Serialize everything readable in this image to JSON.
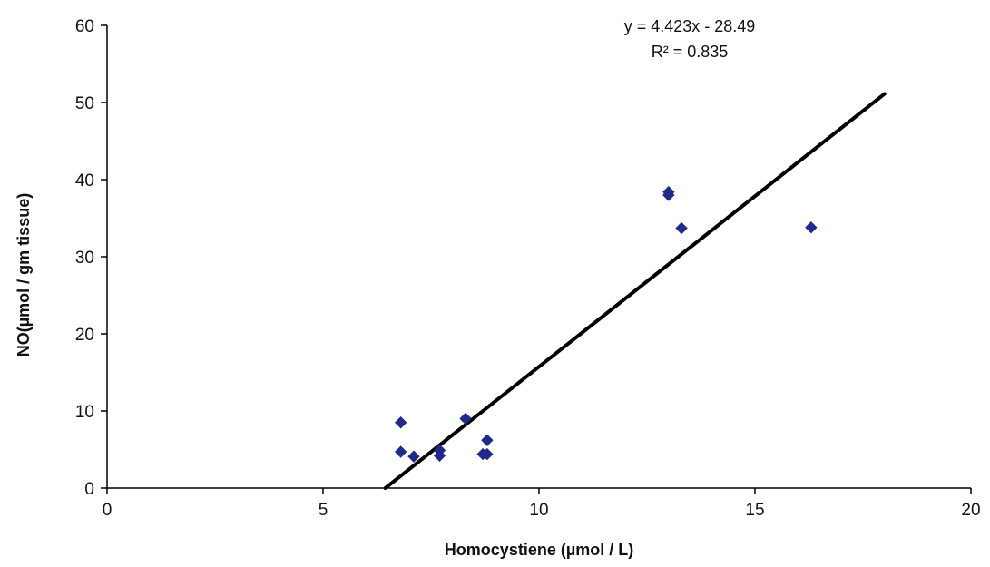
{
  "chart_data": {
    "type": "scatter",
    "title": "",
    "xlabel": "Homocystiene (µmol / L)",
    "ylabel": "NO(µmol / gm tissue)",
    "xlim": [
      0,
      20
    ],
    "ylim": [
      0,
      60
    ],
    "xticks": [
      0,
      5,
      10,
      15,
      20
    ],
    "yticks": [
      0,
      10,
      20,
      30,
      40,
      50,
      60
    ],
    "grid": false,
    "legend": "none",
    "series": [
      {
        "color": "#1f2a8a",
        "marker": "diamond",
        "points": [
          {
            "x": 6.8,
            "y": 8.5
          },
          {
            "x": 6.8,
            "y": 4.7
          },
          {
            "x": 7.1,
            "y": 4.1
          },
          {
            "x": 7.7,
            "y": 4.9
          },
          {
            "x": 7.7,
            "y": 4.2
          },
          {
            "x": 8.3,
            "y": 9.0
          },
          {
            "x": 8.7,
            "y": 4.4
          },
          {
            "x": 8.8,
            "y": 4.4
          },
          {
            "x": 8.8,
            "y": 6.2
          },
          {
            "x": 13.0,
            "y": 38.4
          },
          {
            "x": 13.0,
            "y": 38.0
          },
          {
            "x": 13.3,
            "y": 33.7
          },
          {
            "x": 16.3,
            "y": 33.8
          }
        ]
      }
    ],
    "trendline": {
      "slope": 4.423,
      "intercept": -28.49,
      "x_start": 6.44,
      "x_end": 18.0,
      "color": "#000000"
    },
    "annotations": {
      "equation": "y = 4.423x - 28.49",
      "r_squared": "R² = 0.835"
    }
  }
}
